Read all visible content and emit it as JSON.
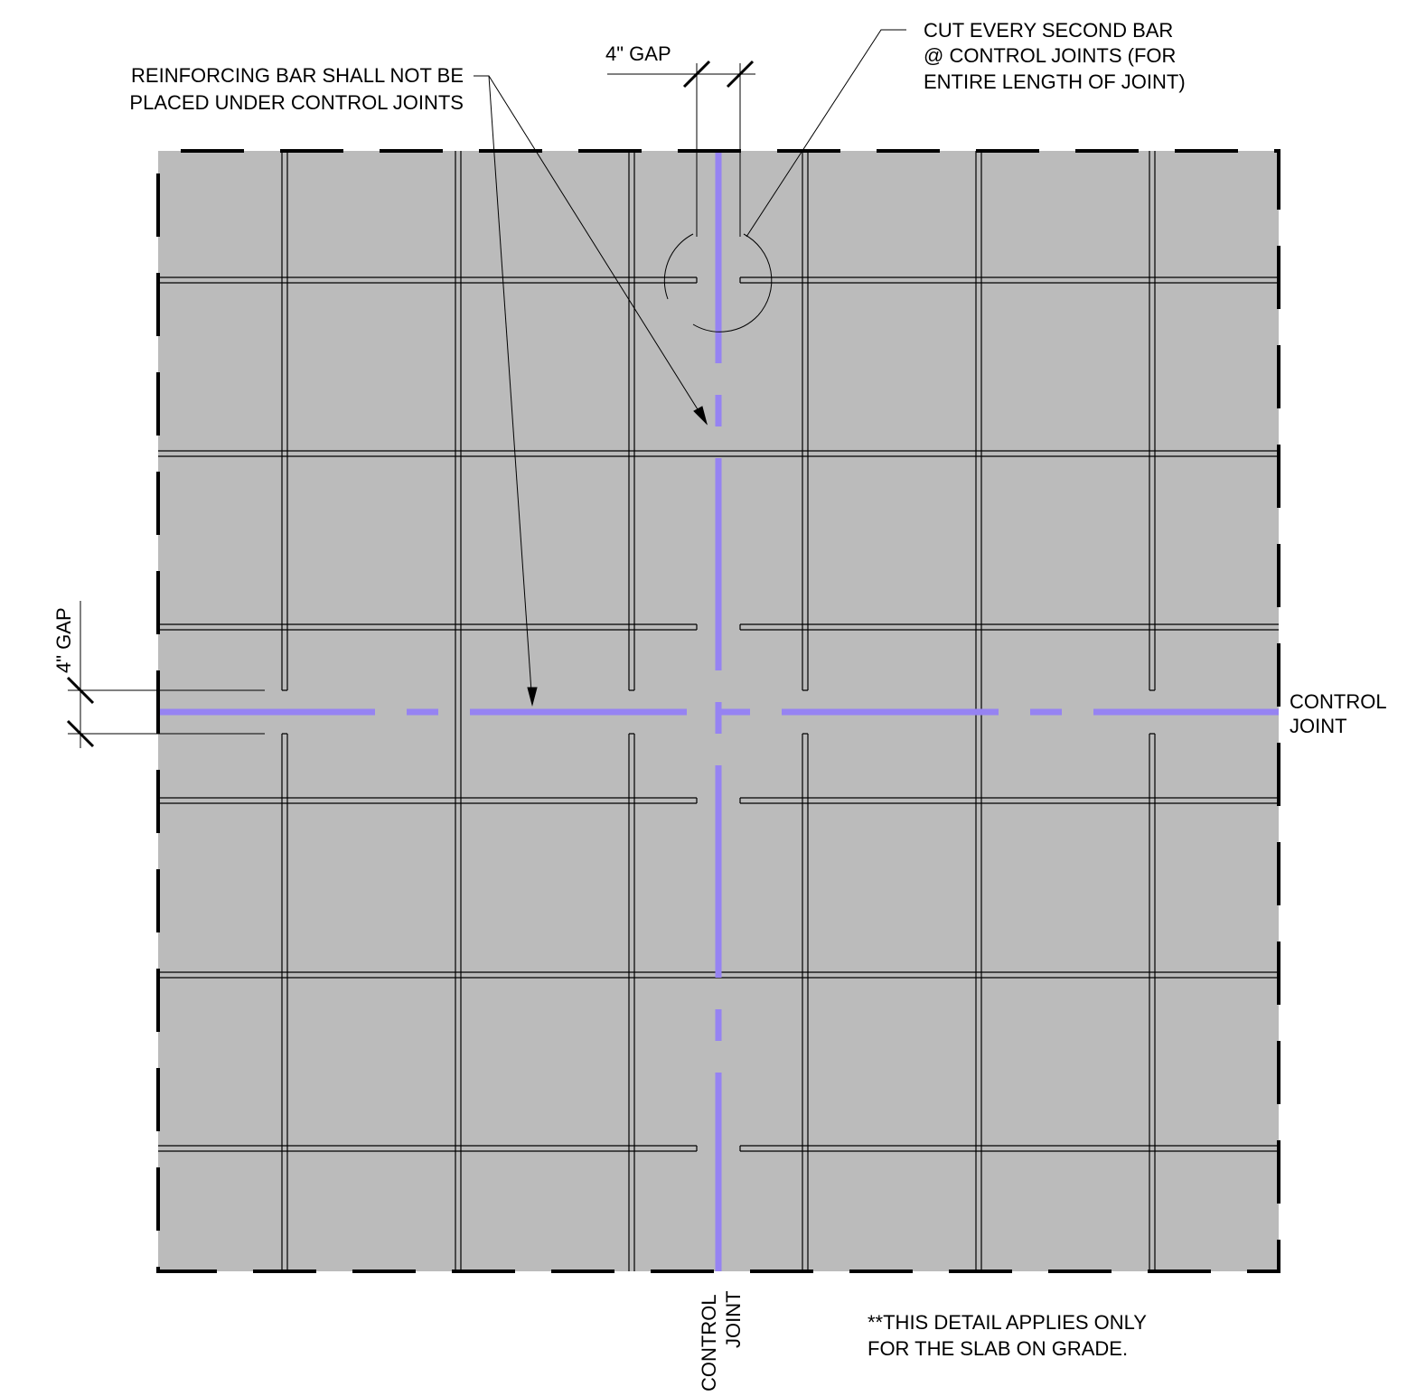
{
  "notes": {
    "rebar_note_line1": "REINFORCING BAR SHALL NOT BE",
    "rebar_note_line2": "PLACED UNDER CONTROL JOINTS",
    "cut_note_line1": "CUT EVERY SECOND BAR",
    "cut_note_line2": "@ CONTROL JOINTS (FOR",
    "cut_note_line3": "ENTIRE LENGTH OF JOINT)",
    "gap_top": "4\" GAP",
    "gap_left": "4\" GAP",
    "control_joint_right_line1": "CONTROL",
    "control_joint_right_line2": "JOINT",
    "control_joint_bottom_line1": "CONTROL",
    "control_joint_bottom_line2": "JOINT",
    "applies_line1": "**THIS DETAIL APPLIES ONLY",
    "applies_line2": "FOR THE SLAB ON GRADE."
  },
  "colors": {
    "slab_fill": "#bbbbbb",
    "control_joint": "#9683f2",
    "rebar": "#000000",
    "slab_edge_dash": "#000000"
  }
}
